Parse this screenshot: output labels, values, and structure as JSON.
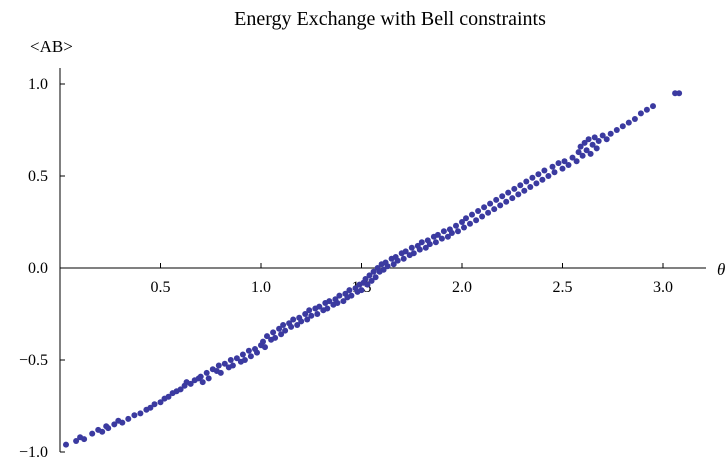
{
  "chart_data": {
    "type": "scatter",
    "title": "Energy Exchange with Bell constraints",
    "xlabel": "θ",
    "ylabel": "<AB>",
    "xlim": [
      0,
      3.14
    ],
    "ylim": [
      -1.05,
      1.05
    ],
    "x_ticks": [
      0.5,
      1.0,
      1.5,
      2.0,
      2.5,
      3.0
    ],
    "x_tick_labels": [
      "0.5",
      "1.0",
      "1.5",
      "2.0",
      "2.5",
      "3.0"
    ],
    "y_ticks": [
      -1.0,
      -0.5,
      0.0,
      0.5,
      1.0
    ],
    "y_tick_labels": [
      "−1.0",
      "−0.5",
      "0.0",
      "0.5",
      "1.0"
    ],
    "grid": false,
    "colors": {
      "points": "#3b3aa0"
    },
    "series": [
      {
        "values": [
          [
            0.03,
            -0.96
          ],
          [
            0.08,
            -0.94
          ],
          [
            0.1,
            -0.92
          ],
          [
            0.12,
            -0.93
          ],
          [
            0.16,
            -0.9
          ],
          [
            0.19,
            -0.88
          ],
          [
            0.21,
            -0.89
          ],
          [
            0.23,
            -0.86
          ],
          [
            0.24,
            -0.87
          ],
          [
            0.27,
            -0.85
          ],
          [
            0.29,
            -0.83
          ],
          [
            0.31,
            -0.84
          ],
          [
            0.34,
            -0.82
          ],
          [
            0.37,
            -0.8
          ],
          [
            0.4,
            -0.79
          ],
          [
            0.43,
            -0.77
          ],
          [
            0.45,
            -0.76
          ],
          [
            0.47,
            -0.74
          ],
          [
            0.5,
            -0.73
          ],
          [
            0.52,
            -0.71
          ],
          [
            0.54,
            -0.7
          ],
          [
            0.56,
            -0.68
          ],
          [
            0.58,
            -0.67
          ],
          [
            0.6,
            -0.66
          ],
          [
            0.62,
            -0.64
          ],
          [
            0.63,
            -0.62
          ],
          [
            0.65,
            -0.63
          ],
          [
            0.67,
            -0.61
          ],
          [
            0.69,
            -0.6
          ],
          [
            0.7,
            -0.59
          ],
          [
            0.71,
            -0.62
          ],
          [
            0.73,
            -0.57
          ],
          [
            0.74,
            -0.6
          ],
          [
            0.76,
            -0.55
          ],
          [
            0.78,
            -0.56
          ],
          [
            0.79,
            -0.53
          ],
          [
            0.8,
            -0.57
          ],
          [
            0.82,
            -0.52
          ],
          [
            0.84,
            -0.54
          ],
          [
            0.85,
            -0.5
          ],
          [
            0.86,
            -0.53
          ],
          [
            0.88,
            -0.49
          ],
          [
            0.9,
            -0.51
          ],
          [
            0.91,
            -0.47
          ],
          [
            0.92,
            -0.5
          ],
          [
            0.94,
            -0.45
          ],
          [
            0.95,
            -0.48
          ],
          [
            0.97,
            -0.44
          ],
          [
            0.98,
            -0.46
          ],
          [
            1.0,
            -0.42
          ],
          [
            1.01,
            -0.4
          ],
          [
            1.02,
            -0.43
          ],
          [
            1.03,
            -0.37
          ],
          [
            1.05,
            -0.39
          ],
          [
            1.06,
            -0.35
          ],
          [
            1.07,
            -0.38
          ],
          [
            1.09,
            -0.33
          ],
          [
            1.1,
            -0.36
          ],
          [
            1.11,
            -0.31
          ],
          [
            1.12,
            -0.34
          ],
          [
            1.14,
            -0.3
          ],
          [
            1.15,
            -0.32
          ],
          [
            1.16,
            -0.28
          ],
          [
            1.18,
            -0.31
          ],
          [
            1.19,
            -0.27
          ],
          [
            1.2,
            -0.29
          ],
          [
            1.22,
            -0.25
          ],
          [
            1.23,
            -0.28
          ],
          [
            1.24,
            -0.23
          ],
          [
            1.25,
            -0.26
          ],
          [
            1.27,
            -0.22
          ],
          [
            1.28,
            -0.25
          ],
          [
            1.29,
            -0.21
          ],
          [
            1.31,
            -0.23
          ],
          [
            1.32,
            -0.19
          ],
          [
            1.33,
            -0.22
          ],
          [
            1.34,
            -0.18
          ],
          [
            1.36,
            -0.2
          ],
          [
            1.37,
            -0.17
          ],
          [
            1.38,
            -0.19
          ],
          [
            1.39,
            -0.15
          ],
          [
            1.41,
            -0.18
          ],
          [
            1.42,
            -0.14
          ],
          [
            1.43,
            -0.16
          ],
          [
            1.44,
            -0.12
          ],
          [
            1.45,
            -0.15
          ],
          [
            1.47,
            -0.11
          ],
          [
            1.48,
            -0.13
          ],
          [
            1.49,
            -0.09
          ],
          [
            1.5,
            -0.12
          ],
          [
            1.51,
            -0.08
          ],
          [
            1.52,
            -0.06
          ],
          [
            1.53,
            -0.09
          ],
          [
            1.54,
            -0.04
          ],
          [
            1.55,
            -0.07
          ],
          [
            1.56,
            -0.02
          ],
          [
            1.57,
            -0.05
          ],
          [
            1.58,
            0.0
          ],
          [
            1.59,
            -0.02
          ],
          [
            1.6,
            0.02
          ],
          [
            1.61,
            -0.01
          ],
          [
            1.62,
            0.03
          ],
          [
            1.63,
            0.01
          ],
          [
            1.65,
            0.05
          ],
          [
            1.66,
            0.02
          ],
          [
            1.67,
            0.06
          ],
          [
            1.68,
            0.04
          ],
          [
            1.7,
            0.08
          ],
          [
            1.71,
            0.05
          ],
          [
            1.72,
            0.09
          ],
          [
            1.74,
            0.07
          ],
          [
            1.75,
            0.11
          ],
          [
            1.76,
            0.08
          ],
          [
            1.78,
            0.12
          ],
          [
            1.79,
            0.1
          ],
          [
            1.8,
            0.14
          ],
          [
            1.82,
            0.11
          ],
          [
            1.83,
            0.15
          ],
          [
            1.84,
            0.13
          ],
          [
            1.86,
            0.17
          ],
          [
            1.87,
            0.14
          ],
          [
            1.88,
            0.18
          ],
          [
            1.9,
            0.16
          ],
          [
            1.91,
            0.2
          ],
          [
            1.93,
            0.17
          ],
          [
            1.94,
            0.21
          ],
          [
            1.95,
            0.19
          ],
          [
            1.97,
            0.23
          ],
          [
            1.98,
            0.2
          ],
          [
            2.0,
            0.25
          ],
          [
            2.01,
            0.22
          ],
          [
            2.02,
            0.27
          ],
          [
            2.04,
            0.24
          ],
          [
            2.05,
            0.29
          ],
          [
            2.07,
            0.26
          ],
          [
            2.08,
            0.31
          ],
          [
            2.1,
            0.28
          ],
          [
            2.11,
            0.33
          ],
          [
            2.13,
            0.3
          ],
          [
            2.14,
            0.35
          ],
          [
            2.16,
            0.32
          ],
          [
            2.17,
            0.37
          ],
          [
            2.19,
            0.34
          ],
          [
            2.2,
            0.39
          ],
          [
            2.22,
            0.36
          ],
          [
            2.23,
            0.41
          ],
          [
            2.25,
            0.38
          ],
          [
            2.26,
            0.43
          ],
          [
            2.28,
            0.4
          ],
          [
            2.29,
            0.45
          ],
          [
            2.31,
            0.42
          ],
          [
            2.32,
            0.47
          ],
          [
            2.34,
            0.44
          ],
          [
            2.35,
            0.49
          ],
          [
            2.37,
            0.46
          ],
          [
            2.38,
            0.51
          ],
          [
            2.4,
            0.48
          ],
          [
            2.41,
            0.53
          ],
          [
            2.43,
            0.5
          ],
          [
            2.45,
            0.55
          ],
          [
            2.46,
            0.52
          ],
          [
            2.48,
            0.57
          ],
          [
            2.5,
            0.54
          ],
          [
            2.51,
            0.58
          ],
          [
            2.53,
            0.56
          ],
          [
            2.55,
            0.6
          ],
          [
            2.57,
            0.58
          ],
          [
            2.58,
            0.63
          ],
          [
            2.59,
            0.66
          ],
          [
            2.6,
            0.61
          ],
          [
            2.61,
            0.68
          ],
          [
            2.62,
            0.64
          ],
          [
            2.63,
            0.7
          ],
          [
            2.64,
            0.62
          ],
          [
            2.65,
            0.67
          ],
          [
            2.66,
            0.71
          ],
          [
            2.67,
            0.65
          ],
          [
            2.68,
            0.69
          ],
          [
            2.7,
            0.72
          ],
          [
            2.72,
            0.7
          ],
          [
            2.74,
            0.73
          ],
          [
            2.77,
            0.75
          ],
          [
            2.8,
            0.77
          ],
          [
            2.83,
            0.79
          ],
          [
            2.86,
            0.81
          ],
          [
            2.89,
            0.84
          ],
          [
            2.92,
            0.86
          ],
          [
            2.95,
            0.88
          ],
          [
            3.06,
            0.95
          ],
          [
            3.08,
            0.95
          ]
        ]
      }
    ]
  }
}
